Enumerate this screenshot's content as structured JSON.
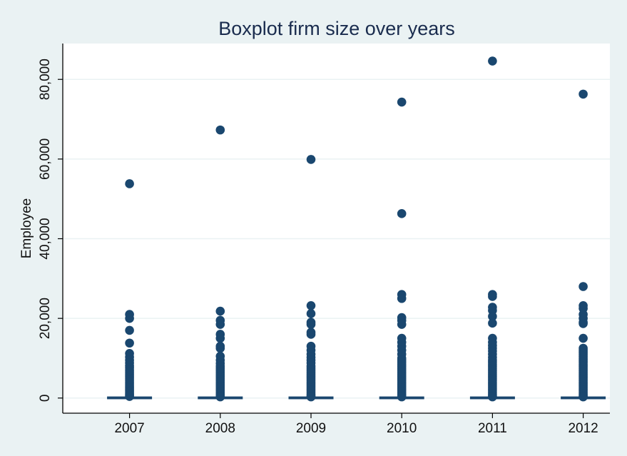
{
  "chart_data": {
    "type": "boxplot",
    "title": "Boxplot firm size over years",
    "xlabel": "",
    "ylabel": "Employee",
    "ylim": [
      -3800,
      89000
    ],
    "yticks": [
      0,
      20000,
      40000,
      60000,
      80000
    ],
    "ytick_labels": [
      "0",
      "20,000",
      "40,000",
      "60,000",
      "80,000"
    ],
    "grid": "horizontal",
    "categories": [
      "2007",
      "2008",
      "2009",
      "2010",
      "2011",
      "2012"
    ],
    "colors": {
      "marker": "#1a476f",
      "grid": "#eaf2f3",
      "plot_bg": "#ffffff",
      "page_bg": "#eaf2f3",
      "title": "#1a2c4e"
    },
    "boxes": [
      {
        "category": "2007",
        "q1": 10,
        "median": 30,
        "q3": 90,
        "whisker_low": 1,
        "whisker_high": 200
      },
      {
        "category": "2008",
        "q1": 10,
        "median": 30,
        "q3": 90,
        "whisker_low": 1,
        "whisker_high": 200
      },
      {
        "category": "2009",
        "q1": 10,
        "median": 30,
        "q3": 90,
        "whisker_low": 1,
        "whisker_high": 200
      },
      {
        "category": "2010",
        "q1": 10,
        "median": 30,
        "q3": 90,
        "whisker_low": 1,
        "whisker_high": 200
      },
      {
        "category": "2011",
        "q1": 10,
        "median": 30,
        "q3": 90,
        "whisker_low": 1,
        "whisker_high": 200
      },
      {
        "category": "2012",
        "q1": 10,
        "median": 30,
        "q3": 90,
        "whisker_low": 1,
        "whisker_high": 200
      }
    ],
    "outliers": [
      [
        53800,
        21000,
        20000,
        17000,
        13800,
        11200,
        10300,
        9500,
        8800,
        8100,
        7600,
        7000,
        6500,
        6000,
        5500,
        5000,
        4500,
        4000,
        3500,
        3000,
        2600,
        2200,
        1800,
        1400,
        1000,
        700,
        400
      ],
      [
        67300,
        21800,
        19500,
        18500,
        16000,
        15000,
        13000,
        12500,
        10500,
        9500,
        8700,
        8000,
        7500,
        7000,
        6500,
        6000,
        5500,
        5000,
        4500,
        4000,
        3500,
        3000,
        2500,
        2000,
        1500,
        1000,
        600,
        300
      ],
      [
        59900,
        23200,
        21200,
        19000,
        18500,
        16500,
        16000,
        13000,
        12000,
        11000,
        10200,
        9500,
        8800,
        8000,
        7500,
        7000,
        6500,
        6000,
        5500,
        5000,
        4500,
        4000,
        3500,
        3000,
        2500,
        2000,
        1500,
        1000,
        600,
        300
      ],
      [
        74300,
        46300,
        26000,
        25000,
        20200,
        19500,
        18500,
        15000,
        14000,
        13000,
        12000,
        11000,
        10000,
        9500,
        9000,
        8500,
        8000,
        7500,
        7000,
        6500,
        6000,
        5500,
        5000,
        4500,
        4000,
        3500,
        3000,
        2500,
        2000,
        1500,
        1000,
        600,
        300
      ],
      [
        84600,
        26000,
        25500,
        22800,
        22000,
        20500,
        18800,
        15000,
        14000,
        13200,
        12500,
        11800,
        11000,
        10200,
        9500,
        9000,
        8500,
        8000,
        7500,
        7000,
        6500,
        6000,
        5500,
        5000,
        4500,
        4000,
        3500,
        3000,
        2500,
        2000,
        1500,
        1000,
        600,
        300
      ],
      [
        76300,
        28000,
        23200,
        22500,
        21000,
        20000,
        19000,
        18700,
        15000,
        12500,
        12000,
        11500,
        11000,
        10500,
        10000,
        9500,
        9000,
        8500,
        8000,
        7500,
        7000,
        6500,
        6000,
        5500,
        5000,
        4500,
        4000,
        3500,
        3000,
        2500,
        2000,
        1500,
        1000,
        600,
        300
      ]
    ]
  }
}
